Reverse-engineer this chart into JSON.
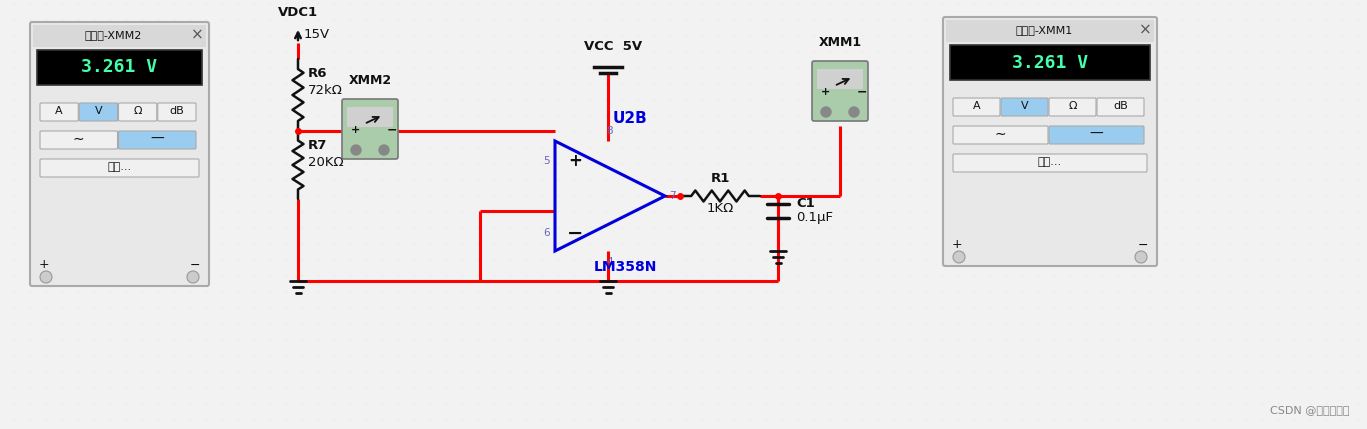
{
  "bg_color": "#f2f2f2",
  "dot_color": "#cccccc",
  "watermark": "CSDN @无尽的箔写",
  "vdc1_label": "VDC1",
  "vdc1_voltage": "15V",
  "vcc_label": "VCC  5V",
  "r6_label": "R6",
  "r6_val": "72kΩ",
  "r7_label": "R7",
  "r7_val": "20KΩ",
  "r1_label": "R1",
  "r1_val": "1KΩ",
  "c1_label": "C1",
  "c1_val": "0.1μF",
  "u2b_label": "U2B",
  "lm358n_label": "LM358N",
  "xmm1_label": "XMM1",
  "xmm2_label": "XMM2",
  "meter1_title": "万用表-XMM1",
  "meter2_title": "万用表-XMM2",
  "meter_reading": "3.261 V",
  "red": "#ff0000",
  "orange": "#e07800",
  "blue_op": "#0000dd",
  "black": "#111111",
  "green_meter_bg": "#aaccaa",
  "display_green": "#44ffaa",
  "btn_blue": "#99ccee",
  "meter_bg": "#e8e8e8",
  "pin_color": "#6666bb"
}
